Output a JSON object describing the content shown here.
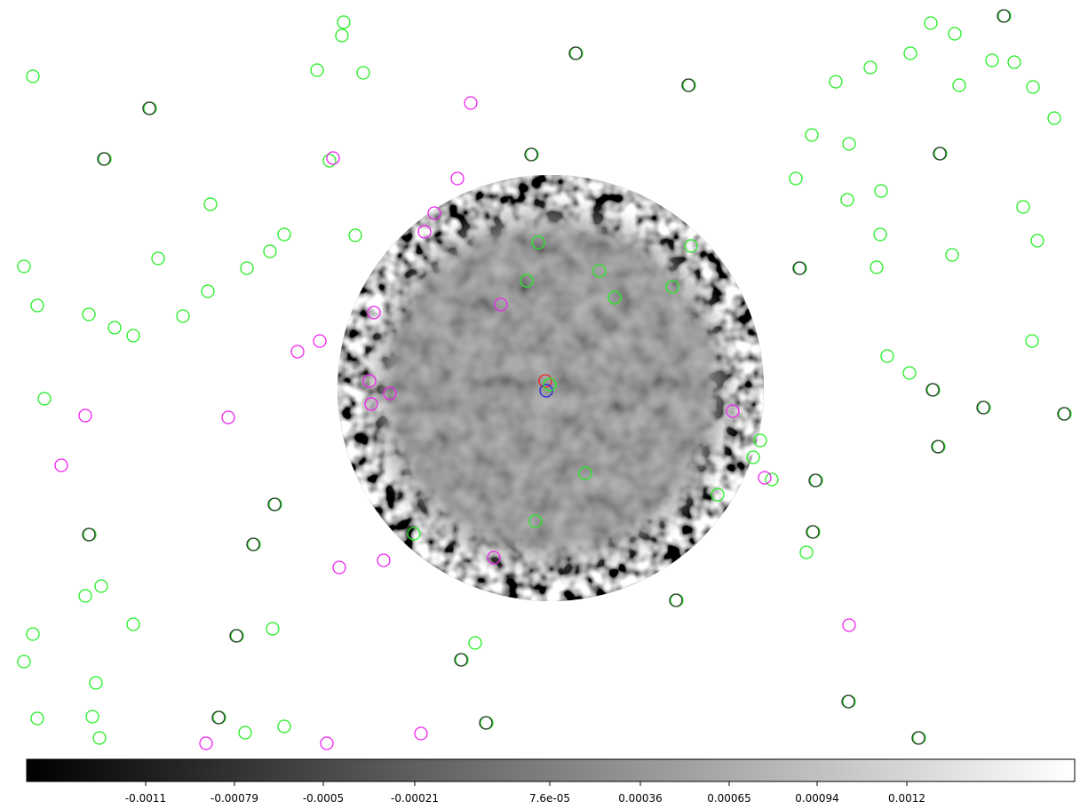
{
  "colorbar": {
    "ticks": [
      "-0.0011",
      "-0.00079",
      "-0.0005",
      "-0.00021",
      "7.6e-05",
      "0.00036",
      "0.00065",
      "0.00094",
      "0.0012"
    ]
  }
}
